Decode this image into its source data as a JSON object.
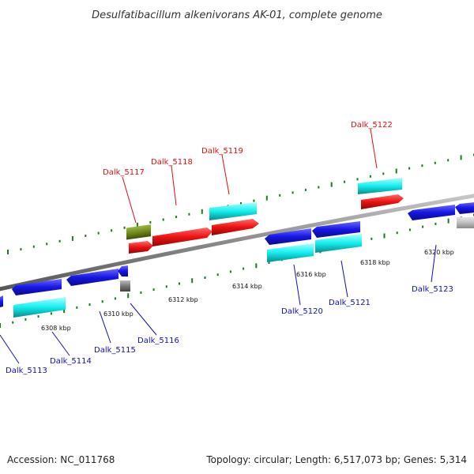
{
  "title": "Desulfatibacillum alkenivorans AK-01, complete genome",
  "footer": {
    "accession": "Accession: NC_011768",
    "summary": "Topology: circular; Length: 6,517,073 bp; Genes: 5,314"
  },
  "colors": {
    "forward_gene": "#ee1111",
    "reverse_gene": "#1616e6",
    "forward_rna": "#11eeee",
    "reverse_rna": "#11eeee",
    "other_feature": "#6f8a1a",
    "pseudo_feature": "#888888",
    "backbone": "#8a8a8a",
    "tick": "#1f7a1f",
    "label_forward": "#dd1111",
    "label_reverse": "#1111aa"
  },
  "ticks": [
    "6308 kbp",
    "6310 kbp",
    "6312 kbp",
    "6314 kbp",
    "6316 kbp",
    "6318 kbp",
    "6320 kbp"
  ],
  "labels_forward": [
    "Dalk_5117",
    "Dalk_5118",
    "Dalk_5119",
    "Dalk_5122"
  ],
  "labels_reverse": [
    "Dalk_5113",
    "Dalk_5114",
    "Dalk_5115",
    "Dalk_5116",
    "Dalk_5120",
    "Dalk_5121",
    "Dalk_5123"
  ]
}
